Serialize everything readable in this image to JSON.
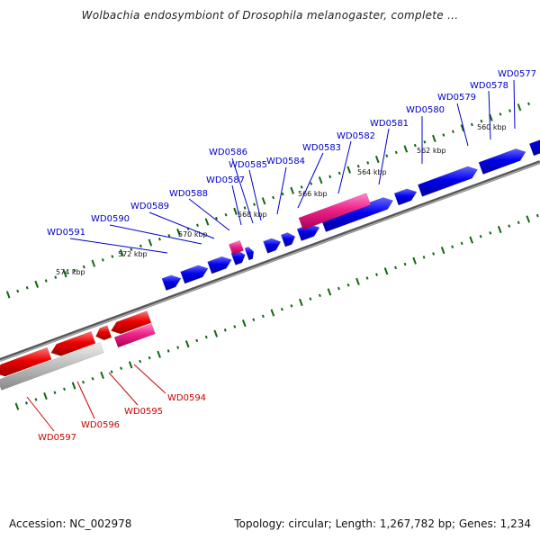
{
  "title": "Wolbachia endosymbiont of Drosophila melanogaster, complete ...",
  "footer": {
    "accession": "Accession: NC_002978",
    "stats": "Topology: circular; Length: 1,267,782 bp; Genes: 1,234"
  },
  "colors": {
    "forward_gene": "#0000dd",
    "reverse_gene": "#ee0000",
    "rna_gene": "#ee2288",
    "pseudo_gene": "#bbbbbb",
    "forward_label": "#0000cc",
    "reverse_label": "#cc0000",
    "backbone": "#777777",
    "tick": "#116611"
  },
  "scale_labels": [
    "560 kbp",
    "562 kbp",
    "564 kbp",
    "566 kbp",
    "568 kbp",
    "570 kbp",
    "572 kbp",
    "574 kbp"
  ],
  "forward_labels": [
    "WD0577",
    "WD0578",
    "WD0579",
    "WD0580",
    "WD0581",
    "WD0582",
    "WD0583",
    "WD0584",
    "WD0585",
    "WD0586",
    "WD0587",
    "WD0588",
    "WD0589",
    "WD0590",
    "WD0591"
  ],
  "reverse_labels": [
    "WD0594",
    "WD0595",
    "WD0596",
    "WD0597"
  ]
}
